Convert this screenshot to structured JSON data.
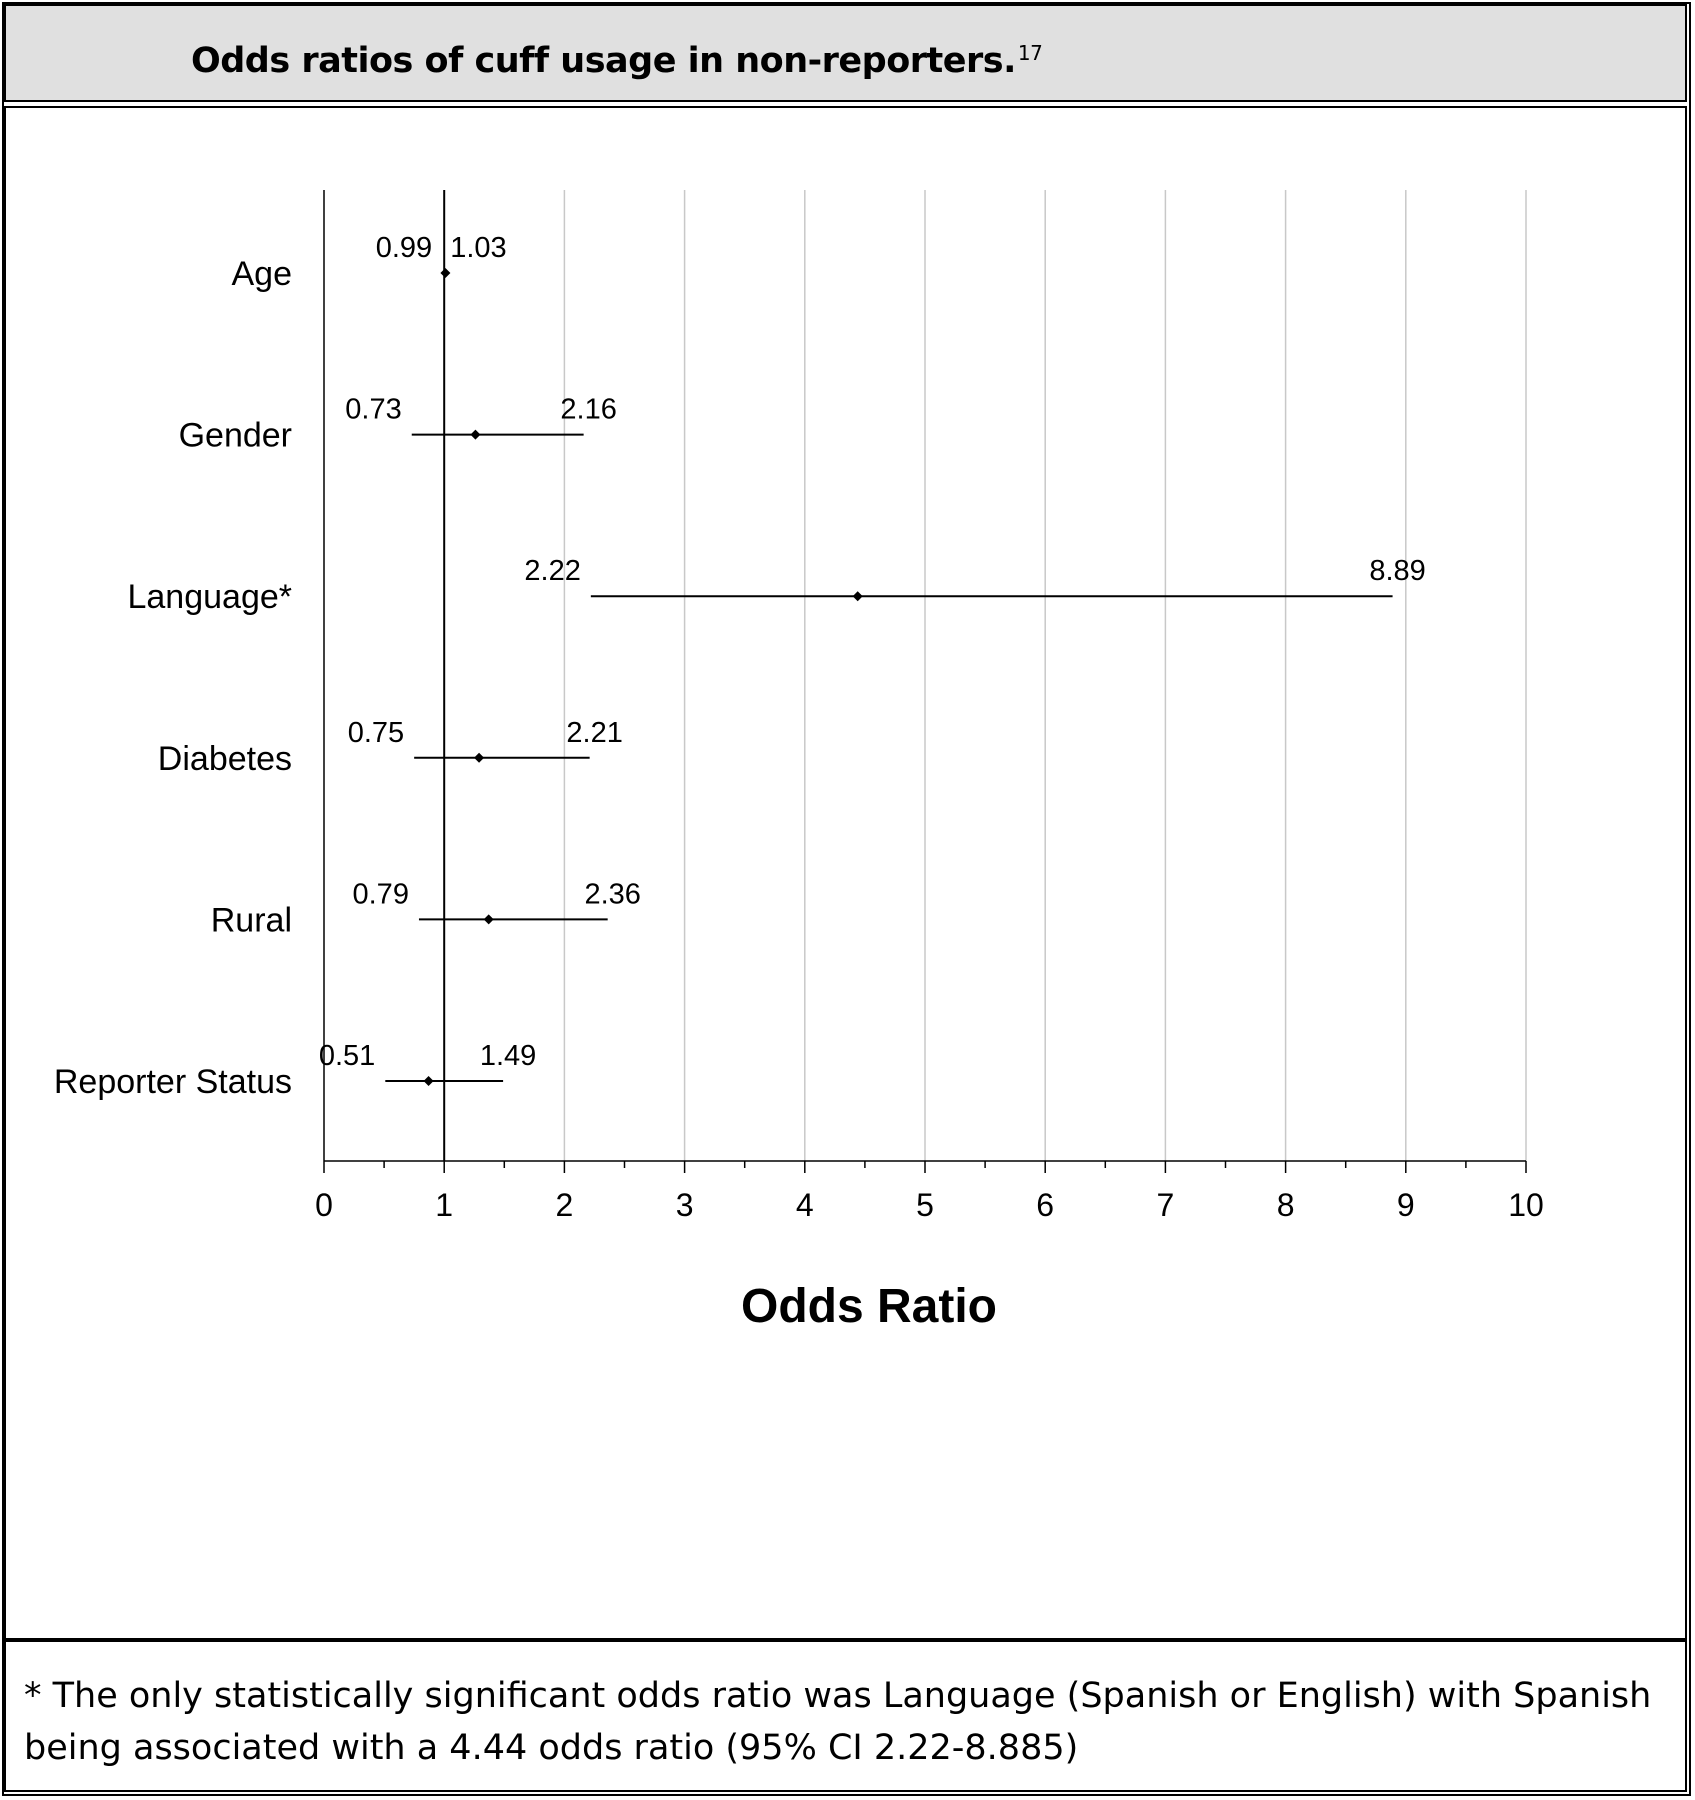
{
  "title": {
    "text": "Odds ratios of cuff usage in non-reporters.",
    "superscript": "17"
  },
  "footnote": "* The only statistically significant odds ratio was Language (Spanish or English) with Spanish being associated with a 4.44 odds ratio (95% CI 2.22-8.885)",
  "chart_data": {
    "type": "forest",
    "xlabel": "Odds Ratio",
    "xlim": [
      0,
      10
    ],
    "xticks": [
      "0",
      "1",
      "2",
      "3",
      "4",
      "5",
      "6",
      "7",
      "8",
      "9",
      "10"
    ],
    "reference_line": 1,
    "grid": "vertical",
    "rows": [
      {
        "label": "Age",
        "estimate": 1.01,
        "lower": 0.99,
        "upper": 1.03,
        "lower_label": "0.99",
        "upper_label": "1.03"
      },
      {
        "label": "Gender",
        "estimate": 1.26,
        "lower": 0.73,
        "upper": 2.16,
        "lower_label": "0.73",
        "upper_label": "2.16"
      },
      {
        "label": "Language*",
        "estimate": 4.44,
        "lower": 2.22,
        "upper": 8.89,
        "lower_label": "2.22",
        "upper_label": "8.89"
      },
      {
        "label": "Diabetes",
        "estimate": 1.29,
        "lower": 0.75,
        "upper": 2.21,
        "lower_label": "0.75",
        "upper_label": "2.21"
      },
      {
        "label": "Rural",
        "estimate": 1.37,
        "lower": 0.79,
        "upper": 2.36,
        "lower_label": "0.79",
        "upper_label": "2.36"
      },
      {
        "label": "Reporter Status",
        "estimate": 0.87,
        "lower": 0.51,
        "upper": 1.49,
        "lower_label": "0.51",
        "upper_label": "1.49"
      }
    ]
  }
}
